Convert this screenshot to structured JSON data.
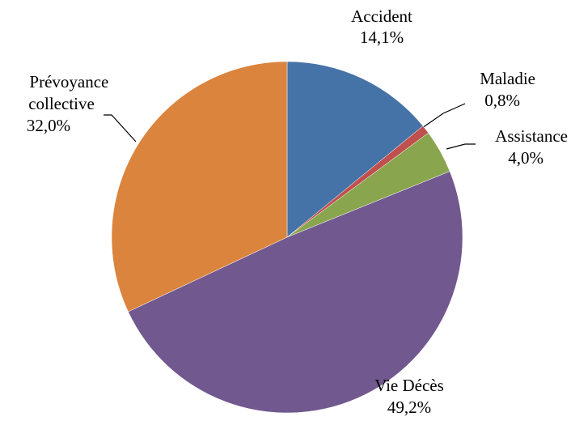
{
  "chart_data": {
    "type": "pie",
    "categories": [
      "Accident",
      "Maladie",
      "Assistance",
      "Vie Décès",
      "Prévoyance collective"
    ],
    "values": [
      14.1,
      0.8,
      4.0,
      49.2,
      32.0
    ],
    "value_labels": [
      "14,1%",
      "0,8%",
      "4,0%",
      "49,2%",
      "32,0%"
    ],
    "colors": [
      "#4572a7",
      "#c0504d",
      "#89a54e",
      "#71588f",
      "#db843d"
    ]
  }
}
